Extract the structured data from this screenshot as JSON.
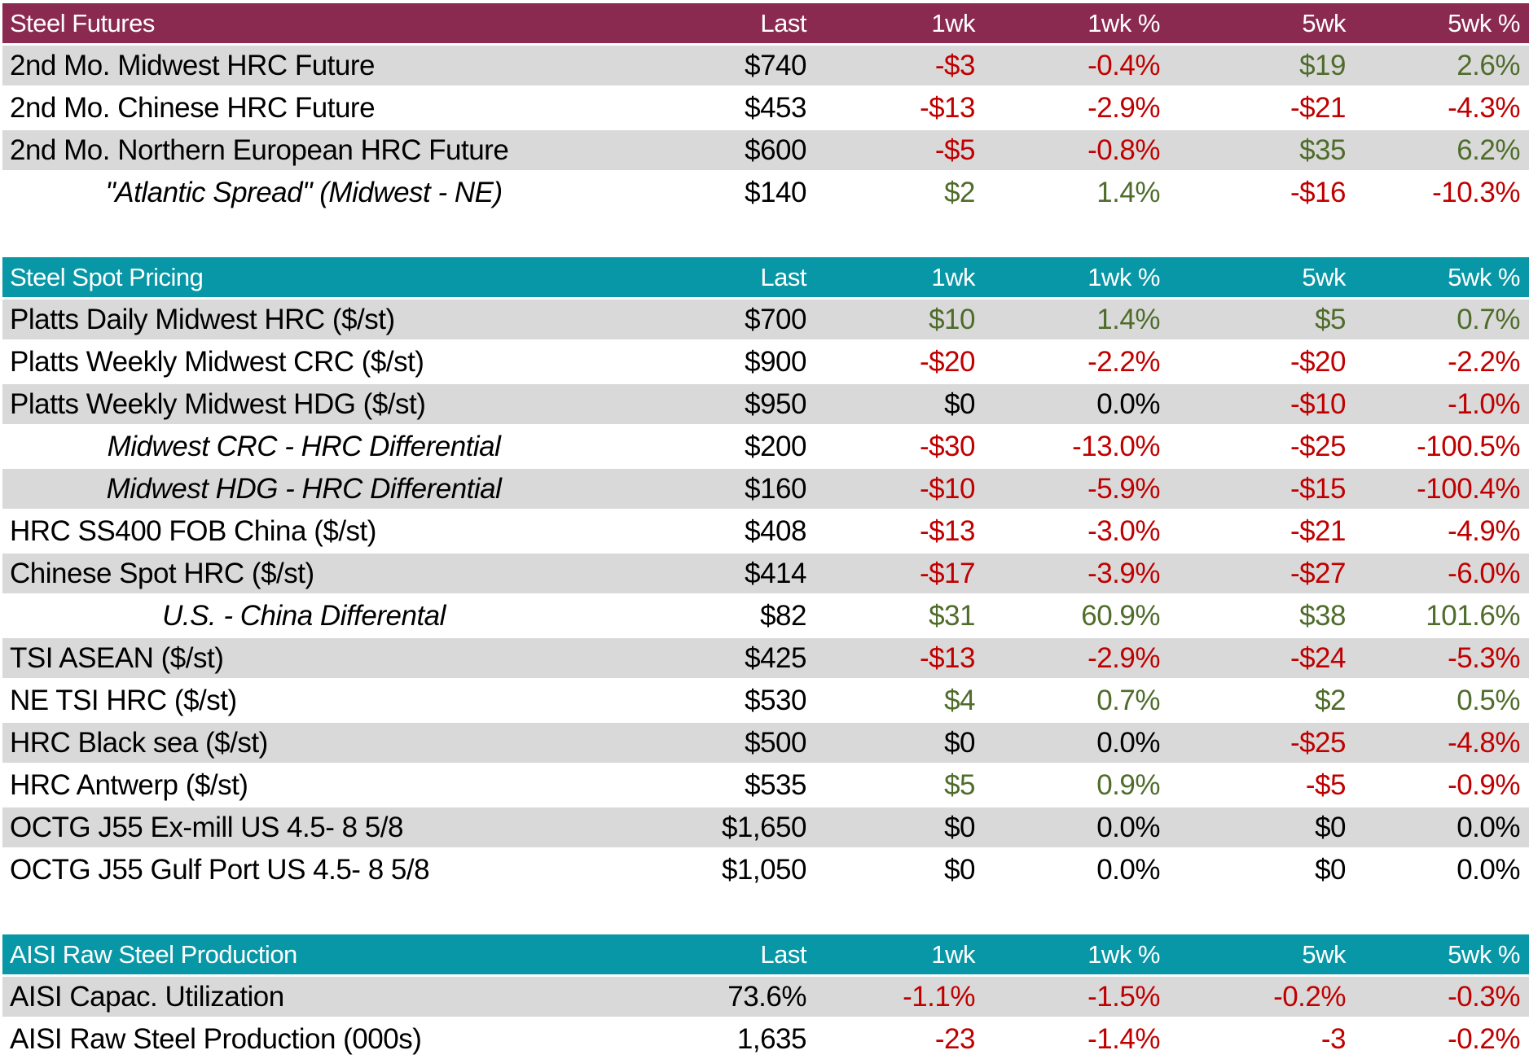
{
  "columns": [
    "Last",
    "1wk",
    "1wk %",
    "5wk",
    "5wk %"
  ],
  "column_keys": [
    "last",
    "1wk",
    "1wk-pct",
    "5wk",
    "5wk-pct"
  ],
  "colors": {
    "futures_header": "#8B2A51",
    "spot_header": "#0897A6",
    "aisi_header": "#0897A6",
    "header_text": "#FFFFFF",
    "row_alt": "#D9D9D9",
    "row_white": "#FFFFFF",
    "negative": "#C00000",
    "positive": "#4F6C2B",
    "neutral": "#000000"
  },
  "chart_data": [
    {
      "type": "table",
      "title": "Steel Futures",
      "header_color": "#8B2A51",
      "columns": [
        "Last",
        "1wk",
        "1wk %",
        "5wk",
        "5wk %"
      ],
      "rows": [
        {
          "label": "2nd Mo. Midwest HRC Future",
          "italic": false,
          "cells": [
            {
              "t": "$740",
              "c": "k"
            },
            {
              "t": "-$3",
              "c": "r"
            },
            {
              "t": "-0.4%",
              "c": "r"
            },
            {
              "t": "$19",
              "c": "g"
            },
            {
              "t": "2.6%",
              "c": "g"
            }
          ]
        },
        {
          "label": "2nd Mo. Chinese HRC Future",
          "italic": false,
          "cells": [
            {
              "t": "$453",
              "c": "k"
            },
            {
              "t": "-$13",
              "c": "r"
            },
            {
              "t": "-2.9%",
              "c": "r"
            },
            {
              "t": "-$21",
              "c": "r"
            },
            {
              "t": "-4.3%",
              "c": "r"
            }
          ]
        },
        {
          "label": "2nd Mo. Northern European HRC Future",
          "italic": false,
          "cells": [
            {
              "t": "$600",
              "c": "k"
            },
            {
              "t": "-$5",
              "c": "r"
            },
            {
              "t": "-0.8%",
              "c": "r"
            },
            {
              "t": "$35",
              "c": "g"
            },
            {
              "t": "6.2%",
              "c": "g"
            }
          ]
        },
        {
          "label": "\"Atlantic Spread\" (Midwest - NE)",
          "italic": true,
          "cells": [
            {
              "t": "$140",
              "c": "k"
            },
            {
              "t": "$2",
              "c": "g"
            },
            {
              "t": "1.4%",
              "c": "g"
            },
            {
              "t": "-$16",
              "c": "r"
            },
            {
              "t": "-10.3%",
              "c": "r"
            }
          ]
        }
      ]
    },
    {
      "type": "table",
      "title": "Steel Spot Pricing",
      "header_color": "#0897A6",
      "columns": [
        "Last",
        "1wk",
        "1wk %",
        "5wk",
        "5wk %"
      ],
      "rows": [
        {
          "label": "Platts Daily Midwest HRC ($/st)",
          "italic": false,
          "cells": [
            {
              "t": "$700",
              "c": "k"
            },
            {
              "t": "$10",
              "c": "g"
            },
            {
              "t": "1.4%",
              "c": "g"
            },
            {
              "t": "$5",
              "c": "g"
            },
            {
              "t": "0.7%",
              "c": "g"
            }
          ]
        },
        {
          "label": "Platts Weekly Midwest CRC ($/st)",
          "italic": false,
          "cells": [
            {
              "t": "$900",
              "c": "k"
            },
            {
              "t": "-$20",
              "c": "r"
            },
            {
              "t": "-2.2%",
              "c": "r"
            },
            {
              "t": "-$20",
              "c": "r"
            },
            {
              "t": "-2.2%",
              "c": "r"
            }
          ]
        },
        {
          "label": "Platts Weekly Midwest HDG ($/st)",
          "italic": false,
          "cells": [
            {
              "t": "$950",
              "c": "k"
            },
            {
              "t": "$0",
              "c": "k"
            },
            {
              "t": "0.0%",
              "c": "k"
            },
            {
              "t": "-$10",
              "c": "r"
            },
            {
              "t": "-1.0%",
              "c": "r"
            }
          ]
        },
        {
          "label": "Midwest CRC - HRC Differential",
          "italic": true,
          "cells": [
            {
              "t": "$200",
              "c": "k"
            },
            {
              "t": "-$30",
              "c": "r"
            },
            {
              "t": "-13.0%",
              "c": "r"
            },
            {
              "t": "-$25",
              "c": "r"
            },
            {
              "t": "-100.5%",
              "c": "r"
            }
          ]
        },
        {
          "label": "Midwest HDG - HRC Differential",
          "italic": true,
          "cells": [
            {
              "t": "$160",
              "c": "k"
            },
            {
              "t": "-$10",
              "c": "r"
            },
            {
              "t": "-5.9%",
              "c": "r"
            },
            {
              "t": "-$15",
              "c": "r"
            },
            {
              "t": "-100.4%",
              "c": "r"
            }
          ]
        },
        {
          "label": "HRC SS400 FOB China ($/st)",
          "italic": false,
          "cells": [
            {
              "t": "$408",
              "c": "k"
            },
            {
              "t": "-$13",
              "c": "r"
            },
            {
              "t": "-3.0%",
              "c": "r"
            },
            {
              "t": "-$21",
              "c": "r"
            },
            {
              "t": "-4.9%",
              "c": "r"
            }
          ]
        },
        {
          "label": "Chinese Spot HRC ($/st)",
          "italic": false,
          "cells": [
            {
              "t": "$414",
              "c": "k"
            },
            {
              "t": "-$17",
              "c": "r"
            },
            {
              "t": "-3.9%",
              "c": "r"
            },
            {
              "t": "-$27",
              "c": "r"
            },
            {
              "t": "-6.0%",
              "c": "r"
            }
          ]
        },
        {
          "label": "U.S. - China Differental",
          "italic": true,
          "cells": [
            {
              "t": "$82",
              "c": "k"
            },
            {
              "t": "$31",
              "c": "g"
            },
            {
              "t": "60.9%",
              "c": "g"
            },
            {
              "t": "$38",
              "c": "g"
            },
            {
              "t": "101.6%",
              "c": "g"
            }
          ]
        },
        {
          "label": "TSI ASEAN ($/st)",
          "italic": false,
          "cells": [
            {
              "t": "$425",
              "c": "k"
            },
            {
              "t": "-$13",
              "c": "r"
            },
            {
              "t": "-2.9%",
              "c": "r"
            },
            {
              "t": "-$24",
              "c": "r"
            },
            {
              "t": "-5.3%",
              "c": "r"
            }
          ]
        },
        {
          "label": "NE TSI HRC ($/st)",
          "italic": false,
          "cells": [
            {
              "t": "$530",
              "c": "k"
            },
            {
              "t": "$4",
              "c": "g"
            },
            {
              "t": "0.7%",
              "c": "g"
            },
            {
              "t": "$2",
              "c": "g"
            },
            {
              "t": "0.5%",
              "c": "g"
            }
          ]
        },
        {
          "label": "HRC Black sea ($/st)",
          "italic": false,
          "cells": [
            {
              "t": "$500",
              "c": "k"
            },
            {
              "t": "$0",
              "c": "k"
            },
            {
              "t": "0.0%",
              "c": "k"
            },
            {
              "t": "-$25",
              "c": "r"
            },
            {
              "t": "-4.8%",
              "c": "r"
            }
          ]
        },
        {
          "label": "HRC Antwerp ($/st)",
          "italic": false,
          "cells": [
            {
              "t": "$535",
              "c": "k"
            },
            {
              "t": "$5",
              "c": "g"
            },
            {
              "t": "0.9%",
              "c": "g"
            },
            {
              "t": "-$5",
              "c": "r"
            },
            {
              "t": "-0.9%",
              "c": "r"
            }
          ]
        },
        {
          "label": "OCTG J55 Ex-mill US 4.5- 8 5/8",
          "italic": false,
          "cells": [
            {
              "t": "$1,650",
              "c": "k"
            },
            {
              "t": "$0",
              "c": "k"
            },
            {
              "t": "0.0%",
              "c": "k"
            },
            {
              "t": "$0",
              "c": "k"
            },
            {
              "t": "0.0%",
              "c": "k"
            }
          ]
        },
        {
          "label": "OCTG J55 Gulf Port US 4.5- 8 5/8",
          "italic": false,
          "cells": [
            {
              "t": "$1,050",
              "c": "k"
            },
            {
              "t": "$0",
              "c": "k"
            },
            {
              "t": "0.0%",
              "c": "k"
            },
            {
              "t": "$0",
              "c": "k"
            },
            {
              "t": "0.0%",
              "c": "k"
            }
          ]
        }
      ]
    },
    {
      "type": "table",
      "title": "AISI Raw Steel Production",
      "header_color": "#0897A6",
      "columns": [
        "Last",
        "1wk",
        "1wk %",
        "5wk",
        "5wk %"
      ],
      "rows": [
        {
          "label": "AISI Capac. Utilization",
          "italic": false,
          "cells": [
            {
              "t": "73.6%",
              "c": "k"
            },
            {
              "t": "-1.1%",
              "c": "r"
            },
            {
              "t": "-1.5%",
              "c": "r"
            },
            {
              "t": "-0.2%",
              "c": "r"
            },
            {
              "t": "-0.3%",
              "c": "r"
            }
          ]
        },
        {
          "label": "AISI Raw Steel Production (000s)",
          "italic": false,
          "cells": [
            {
              "t": "1,635",
              "c": "k"
            },
            {
              "t": "-23",
              "c": "r"
            },
            {
              "t": "-1.4%",
              "c": "r"
            },
            {
              "t": "-3",
              "c": "r"
            },
            {
              "t": "-0.2%",
              "c": "r"
            }
          ]
        }
      ]
    }
  ]
}
